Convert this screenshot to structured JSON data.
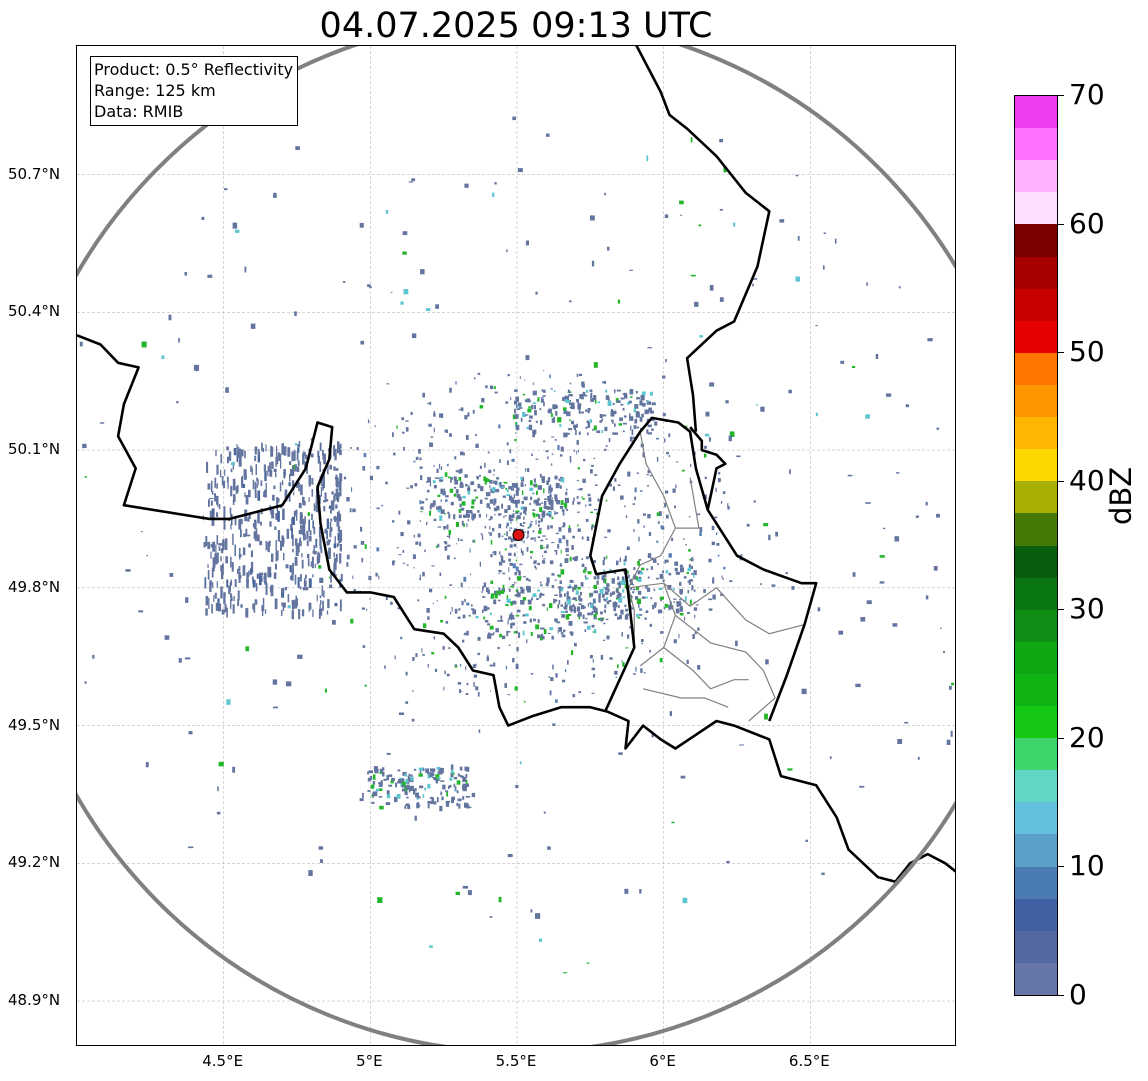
{
  "title": "04.07.2025 09:13 UTC",
  "info_box": {
    "product": "Product: 0.5° Reflectivity",
    "range": "Range: 125 km",
    "source": "Data: RMIB"
  },
  "map": {
    "lon_range": [
      4.0,
      7.0
    ],
    "lat_range": [
      48.8,
      50.98
    ],
    "radar_site": {
      "lon": 5.505,
      "lat": 49.915,
      "color": "#dd1111"
    },
    "range_ring_km": 125,
    "range_ring_color": "#808080",
    "lat_ticks": [
      {
        "value": 48.9,
        "label": "48.9°N"
      },
      {
        "value": 49.2,
        "label": "49.2°N"
      },
      {
        "value": 49.5,
        "label": "49.5°N"
      },
      {
        "value": 49.8,
        "label": "49.8°N"
      },
      {
        "value": 50.1,
        "label": "50.1°N"
      },
      {
        "value": 50.4,
        "label": "50.4°N"
      },
      {
        "value": 50.7,
        "label": "50.7°N"
      }
    ],
    "lon_ticks": [
      {
        "value": 4.5,
        "label": "4.5°E"
      },
      {
        "value": 5.0,
        "label": "5°E"
      },
      {
        "value": 5.5,
        "label": "5.5°E"
      },
      {
        "value": 6.0,
        "label": "6°E"
      },
      {
        "value": 6.5,
        "label": "6.5°E"
      }
    ],
    "borders": [
      [
        [
          4.0,
          50.35
        ],
        [
          4.08,
          50.33
        ],
        [
          4.14,
          50.29
        ],
        [
          4.21,
          50.28
        ],
        [
          4.16,
          50.2
        ],
        [
          4.14,
          50.13
        ],
        [
          4.2,
          50.06
        ],
        [
          4.16,
          49.98
        ],
        [
          4.45,
          49.95
        ],
        [
          4.52,
          49.95
        ],
        [
          4.7,
          49.98
        ],
        [
          4.78,
          50.06
        ],
        [
          4.82,
          50.16
        ],
        [
          4.87,
          50.15
        ],
        [
          4.86,
          50.08
        ],
        [
          4.82,
          50.02
        ],
        [
          4.83,
          49.94
        ],
        [
          4.86,
          49.84
        ],
        [
          4.92,
          49.79
        ],
        [
          5.0,
          49.79
        ],
        [
          5.08,
          49.78
        ],
        [
          5.12,
          49.74
        ],
        [
          5.15,
          49.71
        ],
        [
          5.25,
          49.7
        ],
        [
          5.3,
          49.67
        ],
        [
          5.35,
          49.62
        ],
        [
          5.42,
          49.61
        ],
        [
          5.44,
          49.54
        ],
        [
          5.47,
          49.5
        ],
        [
          5.55,
          49.52
        ],
        [
          5.65,
          49.54
        ],
        [
          5.75,
          49.54
        ],
        [
          5.81,
          49.53
        ],
        [
          5.88,
          49.51
        ],
        [
          5.87,
          49.45
        ],
        [
          5.93,
          49.5
        ],
        [
          5.99,
          49.47
        ],
        [
          6.04,
          49.45
        ],
        [
          6.11,
          49.48
        ],
        [
          6.18,
          49.51
        ],
        [
          6.24,
          49.5
        ],
        [
          6.36,
          49.47
        ],
        [
          6.4,
          49.39
        ],
        [
          6.52,
          49.37
        ],
        [
          6.59,
          49.3
        ],
        [
          6.63,
          49.23
        ],
        [
          6.73,
          49.17
        ],
        [
          6.79,
          49.16
        ],
        [
          6.84,
          49.2
        ],
        [
          6.9,
          49.22
        ],
        [
          6.96,
          49.2
        ],
        [
          7.0,
          49.18
        ]
      ],
      [
        [
          5.8,
          49.53
        ],
        [
          5.9,
          49.67
        ],
        [
          5.87,
          49.84
        ],
        [
          5.77,
          49.83
        ],
        [
          5.75,
          49.87
        ],
        [
          5.79,
          50.0
        ],
        [
          5.85,
          50.07
        ],
        [
          5.92,
          50.14
        ],
        [
          5.96,
          50.17
        ],
        [
          6.05,
          50.16
        ],
        [
          6.09,
          50.14
        ],
        [
          6.11,
          50.06
        ],
        [
          6.15,
          49.97
        ],
        [
          6.25,
          49.87
        ],
        [
          6.34,
          49.84
        ],
        [
          6.47,
          49.81
        ],
        [
          6.52,
          49.81
        ],
        [
          6.48,
          49.72
        ],
        [
          6.42,
          49.61
        ],
        [
          6.36,
          49.51
        ]
      ],
      [
        [
          6.09,
          50.15
        ],
        [
          6.13,
          50.12
        ],
        [
          6.13,
          50.1
        ],
        [
          6.18,
          50.09
        ],
        [
          6.21,
          50.07
        ],
        [
          6.18,
          50.06
        ],
        [
          6.15,
          49.97
        ]
      ],
      [
        [
          6.11,
          50.14
        ],
        [
          6.1,
          50.22
        ],
        [
          6.08,
          50.3
        ],
        [
          6.18,
          50.36
        ],
        [
          6.24,
          50.38
        ],
        [
          6.32,
          50.5
        ],
        [
          6.36,
          50.62
        ],
        [
          6.28,
          50.66
        ],
        [
          6.18,
          50.74
        ],
        [
          6.08,
          50.8
        ],
        [
          6.02,
          50.83
        ],
        [
          5.99,
          50.88
        ],
        [
          5.9,
          50.99
        ]
      ]
    ],
    "internal_borders": [
      [
        [
          5.92,
          50.14
        ],
        [
          5.94,
          50.07
        ],
        [
          6.0,
          50.0
        ],
        [
          6.04,
          49.93
        ],
        [
          5.99,
          49.87
        ],
        [
          5.92,
          49.85
        ],
        [
          5.88,
          49.8
        ],
        [
          5.9,
          49.75
        ],
        [
          5.9,
          49.67
        ]
      ],
      [
        [
          5.88,
          49.8
        ],
        [
          6.0,
          49.81
        ],
        [
          6.09,
          49.76
        ],
        [
          6.18,
          49.8
        ],
        [
          6.28,
          49.73
        ],
        [
          6.36,
          49.7
        ],
        [
          6.48,
          49.72
        ]
      ],
      [
        [
          6.0,
          49.81
        ],
        [
          6.04,
          49.74
        ],
        [
          6.0,
          49.67
        ],
        [
          5.92,
          49.63
        ]
      ],
      [
        [
          6.04,
          49.74
        ],
        [
          6.16,
          49.68
        ],
        [
          6.28,
          49.66
        ],
        [
          6.34,
          49.62
        ],
        [
          6.38,
          49.56
        ],
        [
          6.29,
          49.51
        ]
      ],
      [
        [
          6.0,
          49.67
        ],
        [
          6.1,
          49.62
        ],
        [
          6.16,
          49.58
        ],
        [
          6.24,
          49.6
        ],
        [
          6.29,
          49.6
        ]
      ],
      [
        [
          5.93,
          49.58
        ],
        [
          6.06,
          49.56
        ],
        [
          6.14,
          49.56
        ],
        [
          6.22,
          49.54
        ]
      ],
      [
        [
          6.09,
          50.04
        ],
        [
          6.12,
          49.93
        ],
        [
          6.04,
          49.93
        ]
      ]
    ],
    "radar_palette": [
      "#63749f",
      "#4a679b",
      "#5a7fb5",
      "#24b52a",
      "#46c046",
      "#5ec6d0",
      "#3dd56c",
      "#2e7d32"
    ]
  },
  "colorbar": {
    "label": "dBZ",
    "vmin": 0,
    "vmax": 70,
    "step": 2.5,
    "colors": [
      "#6676a8",
      "#5468a0",
      "#4260a4",
      "#4b7bb3",
      "#5a9fc8",
      "#64c0dd",
      "#62d6c5",
      "#3dd56c",
      "#14c814",
      "#10b514",
      "#10a614",
      "#0e8e14",
      "#0b7712",
      "#085e0c",
      "#457a06",
      "#a8b006",
      "#fed600",
      "#feb600",
      "#fe9600",
      "#fe7600",
      "#e60000",
      "#c70000",
      "#a60000",
      "#7a0000",
      "#fedefe",
      "#feb2fe",
      "#fe72fe",
      "#ec3ced"
    ],
    "ticks": [
      {
        "value": 0,
        "label": "0"
      },
      {
        "value": 10,
        "label": "10"
      },
      {
        "value": 20,
        "label": "20"
      },
      {
        "value": 30,
        "label": "30"
      },
      {
        "value": 40,
        "label": "40"
      },
      {
        "value": 50,
        "label": "50"
      },
      {
        "value": 60,
        "label": "60"
      },
      {
        "value": 70,
        "label": "70"
      }
    ]
  }
}
